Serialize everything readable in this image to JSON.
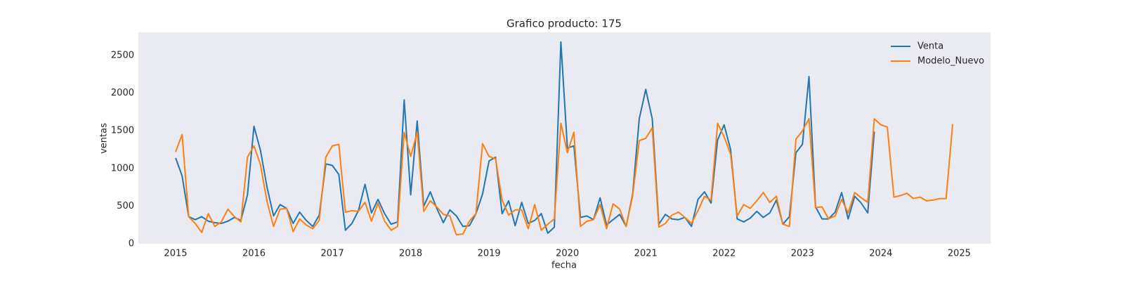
{
  "chart_data": {
    "type": "line",
    "title": "Grafico producto: 175",
    "xlabel": "fecha",
    "ylabel": "ventas",
    "x": [
      2015,
      2015.083,
      2015.167,
      2015.25,
      2015.333,
      2015.417,
      2015.5,
      2015.583,
      2015.667,
      2015.75,
      2015.833,
      2015.917,
      2016,
      2016.083,
      2016.167,
      2016.25,
      2016.333,
      2016.417,
      2016.5,
      2016.583,
      2016.667,
      2016.75,
      2016.833,
      2016.917,
      2017,
      2017.083,
      2017.167,
      2017.25,
      2017.333,
      2017.417,
      2017.5,
      2017.583,
      2017.667,
      2017.75,
      2017.833,
      2017.917,
      2018,
      2018.083,
      2018.167,
      2018.25,
      2018.333,
      2018.417,
      2018.5,
      2018.583,
      2018.667,
      2018.75,
      2018.833,
      2018.917,
      2019,
      2019.083,
      2019.167,
      2019.25,
      2019.333,
      2019.417,
      2019.5,
      2019.583,
      2019.667,
      2019.75,
      2019.833,
      2019.917,
      2020,
      2020.083,
      2020.167,
      2020.25,
      2020.333,
      2020.417,
      2020.5,
      2020.583,
      2020.667,
      2020.75,
      2020.833,
      2020.917,
      2021,
      2021.083,
      2021.167,
      2021.25,
      2021.333,
      2021.417,
      2021.5,
      2021.583,
      2021.667,
      2021.75,
      2021.833,
      2021.917,
      2022,
      2022.083,
      2022.167,
      2022.25,
      2022.333,
      2022.417,
      2022.5,
      2022.583,
      2022.667,
      2022.75,
      2022.833,
      2022.917,
      2023,
      2023.083,
      2023.167,
      2023.25,
      2023.333,
      2023.417,
      2023.5,
      2023.583,
      2023.667,
      2023.75,
      2023.833,
      2023.917,
      2024,
      2024.083,
      2024.167,
      2024.25,
      2024.333,
      2024.417,
      2024.5,
      2024.583,
      2024.667,
      2024.75,
      2024.833,
      2024.917
    ],
    "series": [
      {
        "name": "Venta",
        "color": "#1f77b4",
        "values": [
          1140,
          900,
          360,
          320,
          360,
          300,
          280,
          270,
          300,
          350,
          310,
          650,
          1560,
          1240,
          750,
          370,
          520,
          470,
          270,
          420,
          310,
          230,
          380,
          1060,
          1040,
          920,
          180,
          270,
          440,
          790,
          410,
          590,
          400,
          260,
          290,
          1910,
          650,
          1630,
          500,
          690,
          470,
          280,
          450,
          370,
          230,
          240,
          400,
          660,
          1100,
          1150,
          400,
          570,
          240,
          550,
          270,
          310,
          400,
          140,
          220,
          2680,
          1270,
          1300,
          350,
          370,
          320,
          610,
          250,
          320,
          390,
          230,
          660,
          1660,
          2050,
          1660,
          260,
          390,
          330,
          320,
          350,
          230,
          590,
          690,
          540,
          1380,
          1580,
          1250,
          330,
          290,
          340,
          430,
          350,
          410,
          580,
          260,
          360,
          1210,
          1320,
          2220,
          490,
          330,
          330,
          420,
          680,
          330,
          630,
          540,
          410,
          1490,
          null,
          null,
          null,
          null,
          null,
          null,
          null,
          null,
          null,
          null,
          null,
          null
        ]
      },
      {
        "name": "Modelo_Nuevo",
        "color": "#ff7f0e",
        "values": [
          1220,
          1450,
          360,
          270,
          150,
          400,
          230,
          290,
          460,
          360,
          290,
          1150,
          1300,
          1050,
          560,
          230,
          460,
          470,
          160,
          330,
          250,
          200,
          310,
          1150,
          1300,
          1320,
          420,
          440,
          430,
          550,
          300,
          540,
          300,
          180,
          230,
          1480,
          1160,
          1480,
          430,
          570,
          490,
          390,
          370,
          120,
          130,
          300,
          400,
          1330,
          1160,
          1130,
          580,
          380,
          450,
          450,
          200,
          520,
          180,
          260,
          330,
          1600,
          1210,
          1480,
          230,
          300,
          320,
          520,
          200,
          530,
          460,
          230,
          640,
          1370,
          1400,
          1540,
          220,
          270,
          380,
          420,
          350,
          270,
          440,
          630,
          580,
          1600,
          1420,
          1190,
          370,
          520,
          470,
          570,
          680,
          550,
          630,
          260,
          230,
          1390,
          1500,
          1660,
          480,
          490,
          330,
          370,
          590,
          410,
          680,
          610,
          550,
          1660,
          1580,
          1550,
          620,
          640,
          670,
          600,
          620,
          570,
          580,
          600,
          600,
          1590
        ]
      }
    ],
    "xlim": [
      2014.525,
      2025.4
    ],
    "xticks": [
      2015,
      2016,
      2017,
      2018,
      2019,
      2020,
      2021,
      2022,
      2023,
      2024,
      2025
    ],
    "ylim": [
      0,
      2808
    ],
    "yticks": [
      0,
      500,
      1000,
      1500,
      2000,
      2500
    ],
    "grid": false,
    "legend": "upper right"
  }
}
